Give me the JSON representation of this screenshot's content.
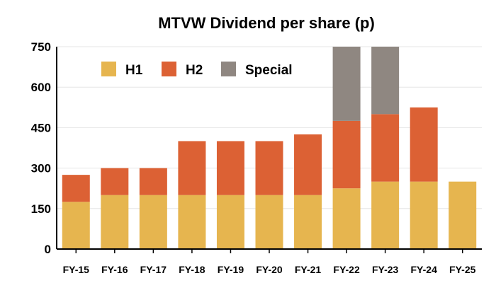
{
  "chart_data": {
    "type": "bar",
    "stacked": true,
    "title": "MTVW Dividend per share (p)",
    "xlabel": "",
    "ylabel": "",
    "categories": [
      "FY-15",
      "FY-16",
      "FY-17",
      "FY-18",
      "FY-19",
      "FY-20",
      "FY-21",
      "FY-22",
      "FY-23",
      "FY-24",
      "FY-25"
    ],
    "series": [
      {
        "name": "H1",
        "color": "#E6B54F",
        "values": [
          175,
          200,
          200,
          200,
          200,
          200,
          200,
          225,
          250,
          250,
          250
        ]
      },
      {
        "name": "H2",
        "color": "#DC6134",
        "values": [
          100,
          100,
          100,
          200,
          200,
          200,
          225,
          250,
          250,
          275,
          0
        ]
      },
      {
        "name": "Special",
        "color": "#8F8781",
        "values": [
          0,
          0,
          0,
          0,
          0,
          0,
          0,
          275,
          250,
          0,
          0
        ]
      }
    ],
    "ylim": [
      0,
      750
    ],
    "yticks": [
      0,
      150,
      300,
      450,
      600,
      750
    ],
    "grid": true,
    "legend_position": "top-left"
  }
}
